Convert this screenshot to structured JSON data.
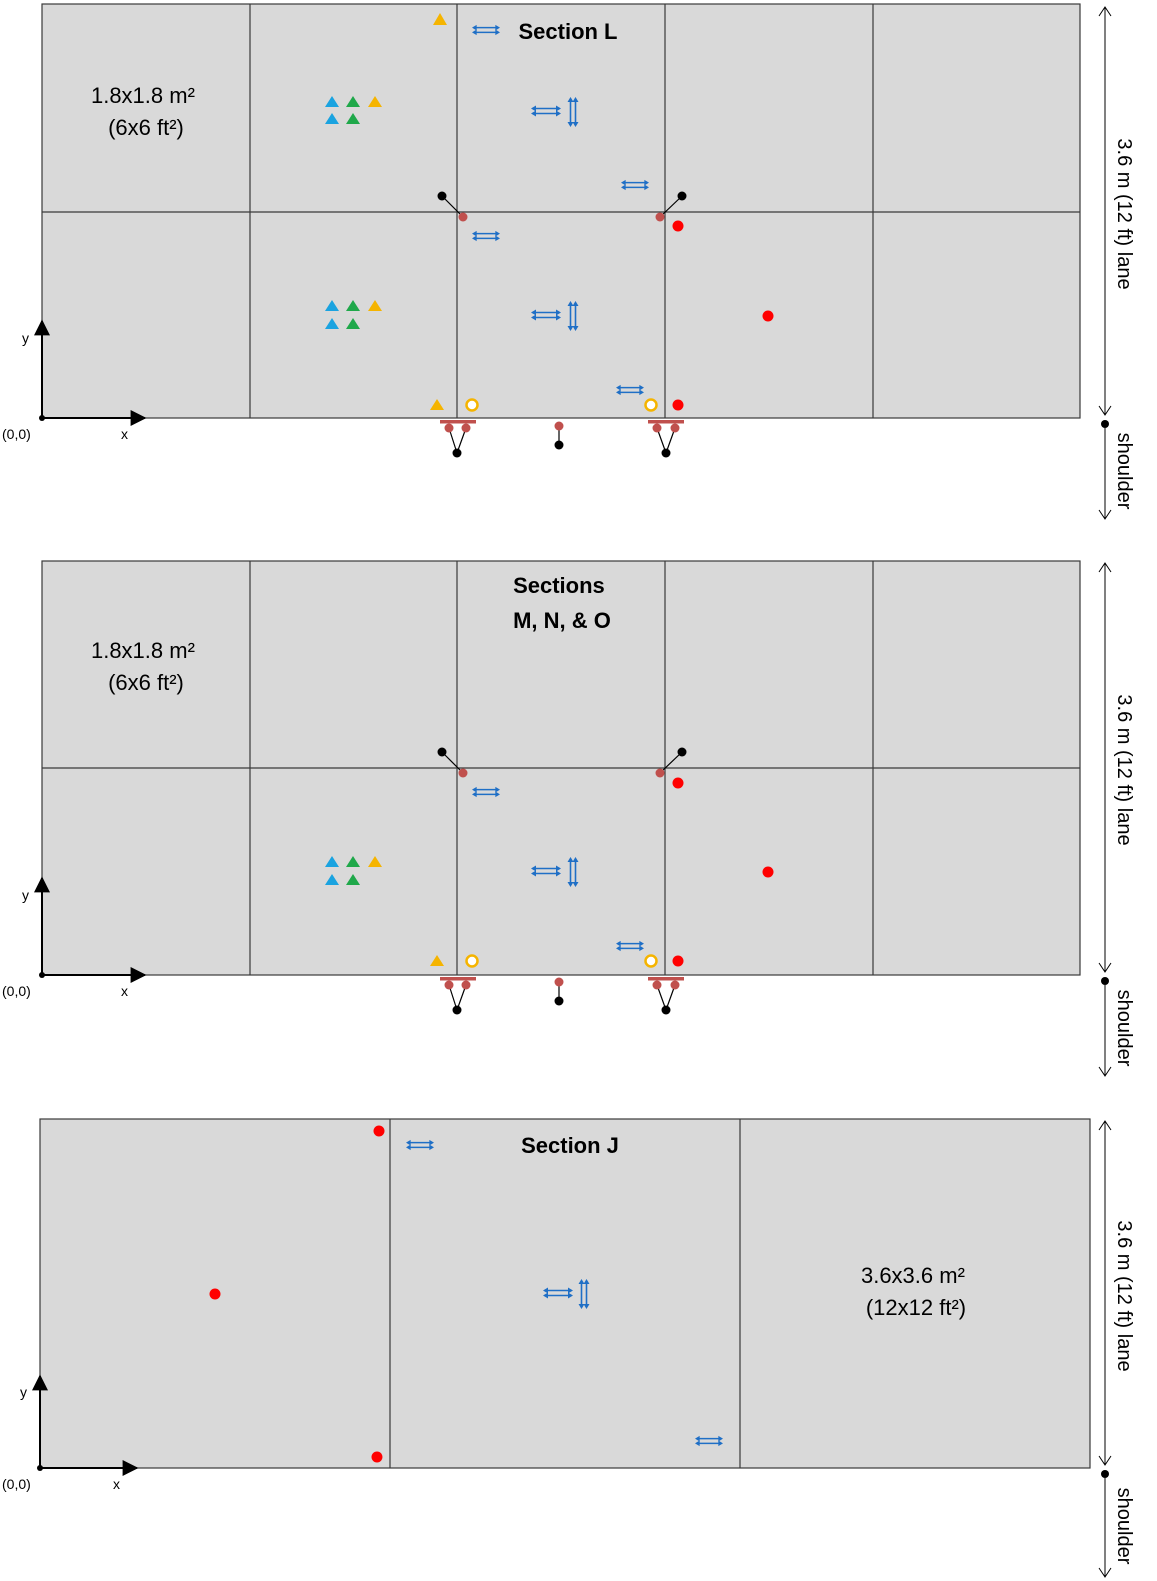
{
  "colors": {
    "slab_fill": "#d9d9d9",
    "joint_line": "#3a3a3a",
    "blue_sensor": "#1f6fc6",
    "cyan_triangle": "#1aa3e0",
    "green_triangle": "#1fa84a",
    "orange_triangle": "#f5b400",
    "red_dot": "#ff0000",
    "rose_dot": "#c0504d",
    "black_dot": "#000000"
  },
  "icons": {
    "triangle": "triangle-icon",
    "double_arrow_h": "double-arrow-horizontal-icon",
    "double_arrow_v": "double-arrow-vertical-icon",
    "red_dot": "red-dot-icon",
    "open_circle": "open-circle-icon"
  },
  "panels": [
    {
      "title_lines": [
        "Section L"
      ],
      "slab_label_lines": [
        "1.8x1.8 m²",
        "(6x6 ft²)"
      ],
      "lane_label": "3.6 m (12 ft) lane",
      "shoulder_label": "shoulder",
      "origin_label": "(0,0)",
      "x_label": "x",
      "y_label": "y"
    },
    {
      "title_lines": [
        "Sections",
        "M, N, & O"
      ],
      "slab_label_lines": [
        "1.8x1.8 m²",
        "(6x6 ft²)"
      ],
      "lane_label": "3.6 m (12 ft) lane",
      "shoulder_label": "shoulder",
      "origin_label": "(0,0)",
      "x_label": "x",
      "y_label": "y"
    },
    {
      "title_lines": [
        "Section J"
      ],
      "slab_label_lines": [
        "3.6x3.6 m²",
        "(12x12 ft²)"
      ],
      "lane_label": "3.6 m (12 ft) lane",
      "shoulder_label": "shoulder",
      "origin_label": "(0,0)",
      "x_label": "x",
      "y_label": "y"
    }
  ]
}
